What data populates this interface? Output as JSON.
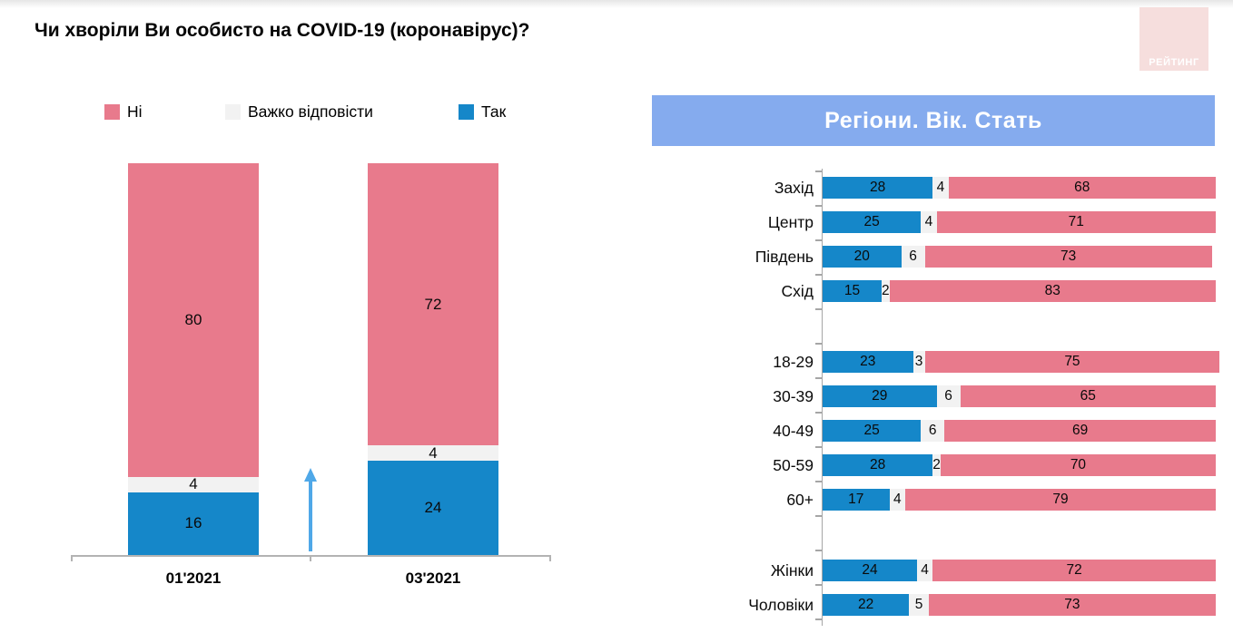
{
  "title": "Чи хворіли Ви особисто на COVID-19 (коронавірус)?",
  "logo": {
    "text": "РЕЙТИНГ",
    "bg": "#f6dedd",
    "text_color": "#ffffff"
  },
  "right_header": "Регіони. Вік. Стать",
  "colors": {
    "yes": "#1587c9",
    "dk": "#f2f2f2",
    "no": "#e87a8c",
    "header_band": "#85abee",
    "arrow": "#4fa8e8",
    "axis": "#a6a6a6"
  },
  "legend": {
    "items": [
      {
        "label": "Ні",
        "color_key": "no"
      },
      {
        "label": "Важко відповісти",
        "color_key": "dk"
      },
      {
        "label": "Так",
        "color_key": "yes"
      }
    ]
  },
  "chart_data": [
    {
      "type": "bar",
      "subtype": "stacked-column-100",
      "title": "Чи хворіли Ви особисто на COVID-19 (коронавірус)?",
      "categories": [
        "01'2021",
        "03'2021"
      ],
      "series": [
        {
          "name": "Так",
          "color_key": "yes",
          "values": [
            16,
            24
          ]
        },
        {
          "name": "Важко відповісти",
          "color_key": "dk",
          "values": [
            4,
            4
          ]
        },
        {
          "name": "Ні",
          "color_key": "no",
          "values": [
            80,
            72
          ]
        }
      ],
      "stack_total": 100,
      "ylim": [
        0,
        100
      ],
      "grid": false,
      "legend_position": "top",
      "annotations": [
        "upward arrow between columns indicating increase"
      ]
    },
    {
      "type": "bar",
      "subtype": "horizontal-stacked-100",
      "title": "Регіони. Вік. Стать",
      "x_max": 100,
      "series_order": [
        "Так",
        "Важко відповісти",
        "Ні"
      ],
      "groups": [
        {
          "name": "regions",
          "rows": [
            {
              "label": "Захід",
              "yes": 28,
              "dk": 4,
              "no": 68
            },
            {
              "label": "Центр",
              "yes": 25,
              "dk": 4,
              "no": 71
            },
            {
              "label": "Південь",
              "yes": 20,
              "dk": 6,
              "no": 73
            },
            {
              "label": "Схід",
              "yes": 15,
              "dk": 2,
              "no": 83
            }
          ]
        },
        {
          "name": "age",
          "rows": [
            {
              "label": "18-29",
              "yes": 23,
              "dk": 3,
              "no": 75
            },
            {
              "label": "30-39",
              "yes": 29,
              "dk": 6,
              "no": 65
            },
            {
              "label": "40-49",
              "yes": 25,
              "dk": 6,
              "no": 69
            },
            {
              "label": "50-59",
              "yes": 28,
              "dk": 2,
              "no": 70
            },
            {
              "label": "60+",
              "yes": 17,
              "dk": 4,
              "no": 79
            }
          ]
        },
        {
          "name": "gender",
          "rows": [
            {
              "label": "Жінки",
              "yes": 24,
              "dk": 4,
              "no": 72
            },
            {
              "label": "Чоловіки",
              "yes": 22,
              "dk": 5,
              "no": 73
            }
          ]
        }
      ]
    }
  ]
}
